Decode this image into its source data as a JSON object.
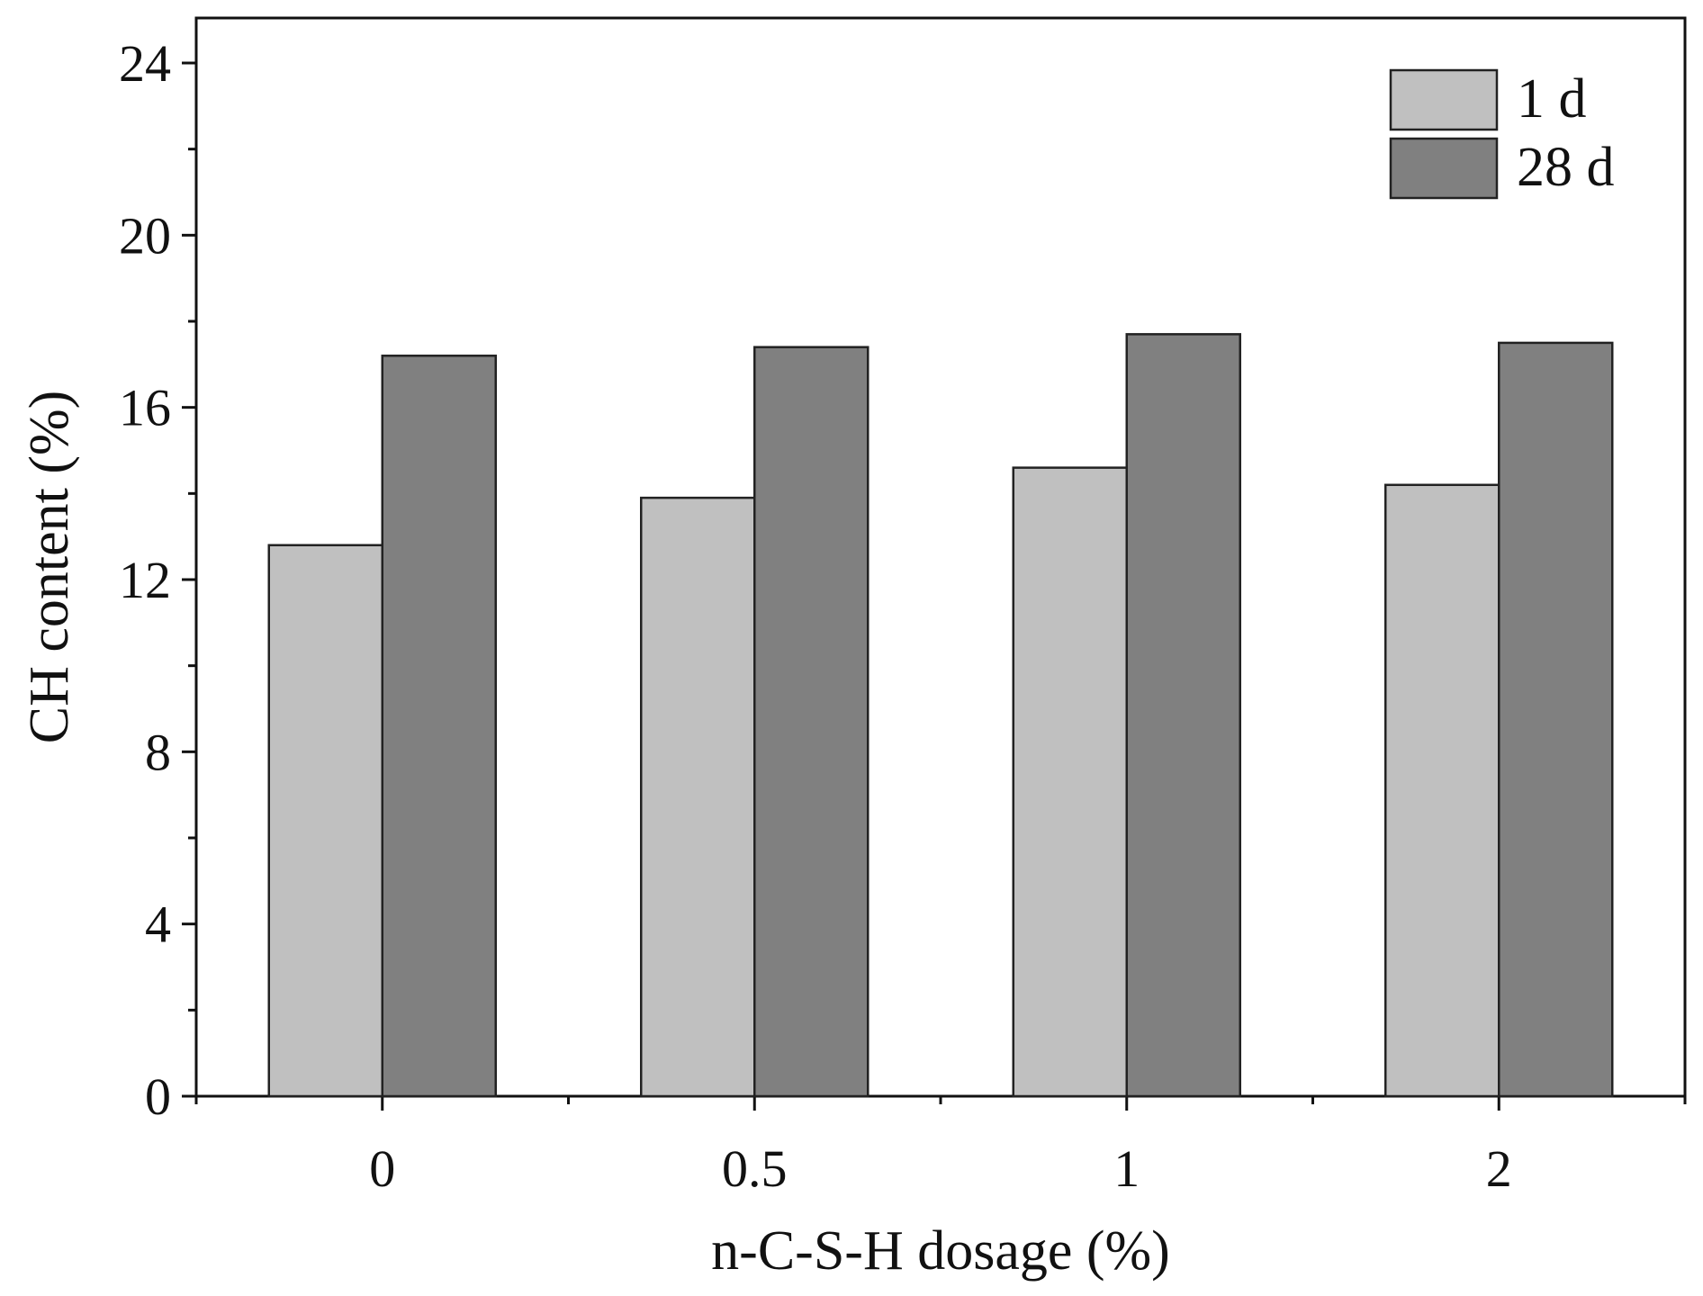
{
  "chart_data": {
    "type": "bar",
    "title": "",
    "xlabel": "n-C-S-H dosage (%)",
    "ylabel": "CH content (%)",
    "categories": [
      "0",
      "0.5",
      "1",
      "2"
    ],
    "series": [
      {
        "name": "1 d",
        "values": [
          12.8,
          13.9,
          14.6,
          14.2
        ],
        "color": "#c0c0c0"
      },
      {
        "name": "28 d",
        "values": [
          17.2,
          17.4,
          17.7,
          17.5
        ],
        "color": "#808080"
      }
    ],
    "ylim": [
      0,
      24
    ],
    "yticks": [
      "0",
      "4",
      "8",
      "12",
      "16",
      "20",
      "24"
    ],
    "grid": false,
    "legend_position": "top-right"
  }
}
